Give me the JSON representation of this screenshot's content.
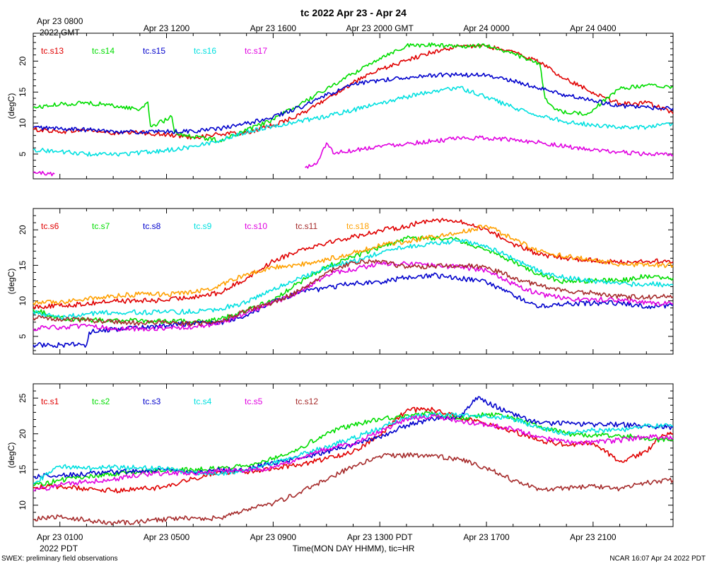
{
  "title": "tc 2022 Apr 23 - Apr 24",
  "top_axis": {
    "timezone_label": "2022 GMT",
    "ticks": [
      {
        "hour": 1,
        "label": "Apr 23 0800"
      },
      {
        "hour": 5,
        "label": "Apr 23 1200"
      },
      {
        "hour": 9,
        "label": "Apr 23 1600"
      },
      {
        "hour": 13,
        "label": "Apr 23 2000 GMT"
      },
      {
        "hour": 17,
        "label": "Apr 24 0000"
      },
      {
        "hour": 21,
        "label": "Apr 24 0400"
      }
    ]
  },
  "bottom_axis": {
    "timezone_label": "2022 PDT",
    "xlabel": "Time(MON DAY HHMM), tic=HR",
    "ticks": [
      {
        "hour": 1,
        "label": "Apr 23 0100"
      },
      {
        "hour": 5,
        "label": "Apr 23 0500"
      },
      {
        "hour": 9,
        "label": "Apr 23 0900"
      },
      {
        "hour": 13,
        "label": "Apr 23 1300 PDT"
      },
      {
        "hour": 17,
        "label": "Apr 23 1700"
      },
      {
        "hour": 21,
        "label": "Apr 23 2100"
      }
    ]
  },
  "footer": {
    "left": "SWEX: preliminary field observations",
    "right": "NCAR 16:07 Apr 24 2022 PDT"
  },
  "chart_data": [
    {
      "type": "line",
      "ylabel": "(degC)",
      "ylim": [
        1,
        24.5
      ],
      "xlim_hours_pdt": [
        0,
        24
      ],
      "yticks": [
        5,
        10,
        15,
        20
      ],
      "series": [
        {
          "name": "tc.s13",
          "color": "#e00000",
          "x": [
            0,
            1,
            2,
            3,
            4,
            5,
            6,
            7,
            8,
            9,
            10,
            11,
            12,
            13,
            14,
            15,
            16,
            17,
            18,
            19,
            20,
            21,
            21.5,
            22,
            22.5,
            23,
            23.5,
            24
          ],
          "values": [
            9,
            8.6,
            8.9,
            8.3,
            8.5,
            8.1,
            7.7,
            8.2,
            8.4,
            9.7,
            11.3,
            13.9,
            16.5,
            18.6,
            20.1,
            21.5,
            22.4,
            22.4,
            21.5,
            19.8,
            17,
            15,
            14,
            13.2,
            13,
            13.3,
            12.5,
            11.5
          ]
        },
        {
          "name": "tc.s14",
          "color": "#00dd00",
          "x": [
            0,
            1,
            2,
            3,
            4,
            4.3,
            4.4,
            5,
            5.2,
            5.3,
            6,
            6.5,
            7,
            8,
            9,
            10,
            11,
            12,
            13,
            14,
            15,
            16,
            17,
            18,
            19,
            19.2,
            19.5,
            20,
            20.8,
            21,
            22,
            23,
            24
          ],
          "values": [
            12.5,
            13,
            13.3,
            12.8,
            12.2,
            13.4,
            9.5,
            10.5,
            11,
            8.5,
            7.8,
            7.5,
            7.2,
            8.8,
            10.6,
            13,
            15.5,
            18,
            20.5,
            22.5,
            22.6,
            22.4,
            22.5,
            21.2,
            19.5,
            14,
            12.6,
            11.6,
            11.6,
            12.2,
            15.5,
            16.1,
            15.8
          ]
        },
        {
          "name": "tc.s15",
          "color": "#0000cc",
          "x": [
            0,
            1,
            2,
            3,
            4,
            5,
            6,
            7,
            8,
            9,
            10,
            11,
            12,
            13,
            14,
            15,
            16,
            17,
            18,
            19,
            20,
            21,
            22,
            23,
            24
          ],
          "values": [
            9.3,
            9.1,
            8.9,
            8.7,
            8.5,
            8.6,
            8.7,
            9.1,
            9.9,
            11,
            12.5,
            14.5,
            16.2,
            16.9,
            17.4,
            17.7,
            17.8,
            17.7,
            16.8,
            15.6,
            14.5,
            13.6,
            12.8,
            12.5,
            12.4
          ]
        },
        {
          "name": "tc.s16",
          "color": "#00e0e0",
          "x": [
            0,
            1,
            2,
            3,
            4,
            5,
            6,
            7,
            8,
            9,
            10,
            11,
            12,
            13,
            14,
            15,
            16,
            17,
            18,
            19,
            20,
            21,
            22,
            23,
            23.5,
            24
          ],
          "values": [
            5.7,
            5.4,
            5,
            4.9,
            5.2,
            5.6,
            6.2,
            7.2,
            8.6,
            9.5,
            10.3,
            11.1,
            12.1,
            13.2,
            14.2,
            15.2,
            15.7,
            14.2,
            12.5,
            11.2,
            10.2,
            9.7,
            9.3,
            9.3,
            9.6,
            9.9
          ]
        },
        {
          "name": "tc.s17",
          "color": "#e000e0",
          "x": [
            0,
            0.8,
            null,
            10.2,
            10.6,
            11,
            11.3,
            11.4,
            12,
            13,
            14,
            15,
            16,
            17,
            18,
            19,
            20,
            21,
            22,
            23,
            24
          ],
          "values": [
            2,
            1.8,
            null,
            2.8,
            3.3,
            6.8,
            5,
            5.3,
            5.6,
            6.3,
            6.7,
            7.1,
            7.5,
            7.6,
            7.3,
            6.9,
            6.2,
            5.6,
            5.3,
            5,
            4.8
          ]
        }
      ]
    },
    {
      "type": "line",
      "ylabel": "(degC)",
      "ylim": [
        2.5,
        23
      ],
      "xlim_hours_pdt": [
        0,
        24
      ],
      "yticks": [
        5,
        10,
        15,
        20
      ],
      "series": [
        {
          "name": "tc.s6",
          "color": "#e00000",
          "x": [
            0,
            1,
            2,
            3,
            4,
            5,
            6,
            7,
            8,
            9,
            10,
            11,
            12,
            13,
            14,
            15,
            16,
            17,
            18,
            19,
            20,
            21,
            22,
            23,
            24
          ],
          "values": [
            9.2,
            9.3,
            9.6,
            10,
            10,
            10.1,
            10.6,
            11.1,
            13.2,
            15.6,
            17.2,
            18.2,
            19,
            19.9,
            20.5,
            21.5,
            21.1,
            20.1,
            18,
            16.5,
            16,
            15.7,
            15.4,
            15.6,
            15.5
          ]
        },
        {
          "name": "tc.s7",
          "color": "#00dd00",
          "x": [
            0,
            1,
            2,
            3,
            4,
            5,
            6,
            7,
            8,
            9,
            10,
            11,
            12,
            13,
            14,
            15,
            16,
            17,
            18,
            19,
            20,
            21,
            22,
            23,
            24
          ],
          "values": [
            8.8,
            7.6,
            7.3,
            7.3,
            7.2,
            7.1,
            7.1,
            7.4,
            8.6,
            10.2,
            12.6,
            14.8,
            16.2,
            17.5,
            18.8,
            18.9,
            18.5,
            17.2,
            15.5,
            13.7,
            12.6,
            12.9,
            12.8,
            13.5,
            13.2
          ]
        },
        {
          "name": "tc.s8",
          "color": "#0000cc",
          "x": [
            0,
            1,
            2,
            2.1,
            3,
            4,
            5,
            6,
            7,
            8,
            9,
            10,
            11,
            12,
            13,
            14,
            15,
            16,
            17,
            18,
            19,
            20,
            21,
            22,
            23,
            24
          ],
          "values": [
            3.8,
            3.8,
            3.8,
            5.6,
            6,
            6.2,
            6.5,
            6.9,
            6.9,
            8,
            9.8,
            11.2,
            11.8,
            12.5,
            12.6,
            13.3,
            13.6,
            13.2,
            12.6,
            10.8,
            9.2,
            9.6,
            9.7,
            9.7,
            9.2,
            9.4
          ]
        },
        {
          "name": "tc.s9",
          "color": "#00e0e0",
          "x": [
            0,
            1,
            2,
            3,
            4,
            5,
            6,
            7,
            8,
            9,
            10,
            11,
            12,
            13,
            14,
            15,
            16,
            17,
            18,
            19,
            20,
            21,
            22,
            23,
            24
          ],
          "values": [
            8.5,
            7.6,
            8.2,
            8.4,
            8.4,
            8.4,
            8.5,
            8.9,
            9.8,
            11.6,
            13.2,
            14.7,
            15.6,
            16.7,
            17.6,
            18,
            18.5,
            17.8,
            15.9,
            14.1,
            13.3,
            12.8,
            12.3,
            12.4,
            12.2
          ]
        },
        {
          "name": "tc.s10",
          "color": "#e000e0",
          "x": [
            0,
            1,
            2,
            3,
            4,
            5,
            6,
            7,
            8,
            9,
            10,
            11,
            12,
            13,
            14,
            15,
            16,
            17,
            18,
            19,
            20,
            21,
            22,
            23,
            24
          ],
          "values": [
            6.1,
            6.3,
            6.4,
            6.1,
            6.1,
            6.2,
            6.3,
            6.8,
            8.3,
            9.8,
            11.2,
            13.7,
            14.4,
            15.3,
            15.2,
            15,
            14.8,
            14.3,
            12.4,
            10.9,
            10.3,
            10.2,
            10.1,
            9.7,
            9.6
          ]
        },
        {
          "name": "tc.s11",
          "color": "#a52a2a",
          "x": [
            0,
            1,
            2,
            3,
            4,
            5,
            6,
            7,
            8,
            9,
            10,
            11,
            12,
            13,
            14,
            15,
            16,
            17,
            18,
            19,
            20,
            21,
            22,
            23,
            24
          ],
          "values": [
            7.6,
            7.5,
            7.3,
            7,
            6.9,
            6.9,
            6.8,
            7.1,
            8.7,
            9.8,
            11.4,
            14,
            15.4,
            15.5,
            14.8,
            14.8,
            15.1,
            14.7,
            13.3,
            12.1,
            11.4,
            11.1,
            10.6,
            10.5,
            10.6
          ]
        },
        {
          "name": "tc.s18",
          "color": "#ffa000",
          "x": [
            0,
            1,
            2,
            3,
            4,
            5,
            6,
            7,
            8,
            9,
            10,
            11,
            12,
            13,
            14,
            15,
            16,
            17,
            18,
            19,
            20,
            21,
            22,
            23,
            24
          ],
          "values": [
            9.7,
            9.8,
            10.3,
            10.7,
            10.9,
            10.9,
            11.2,
            12.1,
            13.8,
            14.7,
            15.1,
            15.8,
            16.8,
            17.8,
            18.4,
            19,
            19.6,
            20.6,
            18.7,
            16.9,
            16.3,
            15.7,
            15.2,
            15.1,
            15
          ]
        }
      ]
    },
    {
      "type": "line",
      "ylabel": "(degC)",
      "ylim": [
        7,
        27
      ],
      "xlim_hours_pdt": [
        0,
        24
      ],
      "yticks": [
        10,
        15,
        20,
        25
      ],
      "series": [
        {
          "name": "tc.s1",
          "color": "#e00000",
          "x": [
            0,
            1,
            2,
            3,
            4,
            5,
            6,
            7,
            8,
            9,
            10,
            11,
            12,
            13,
            14,
            15,
            16,
            17,
            18,
            19,
            20,
            21,
            22,
            23,
            23.5,
            24
          ],
          "values": [
            12.5,
            12.6,
            12.3,
            12,
            12.3,
            12.5,
            13.7,
            14.7,
            14.6,
            15.2,
            15.7,
            16.5,
            17.5,
            19.8,
            23.3,
            23.4,
            22.3,
            21.3,
            20.4,
            19,
            18.5,
            18.7,
            16.1,
            17.5,
            19.5,
            20
          ]
        },
        {
          "name": "tc.s2",
          "color": "#00dd00",
          "x": [
            0,
            1,
            2,
            3,
            4,
            5,
            6,
            7,
            8,
            9,
            10,
            11,
            12,
            13,
            14,
            15,
            16,
            17,
            18,
            19,
            20,
            21,
            22,
            23,
            24
          ],
          "values": [
            12.8,
            13.5,
            14,
            14.3,
            14.7,
            15,
            14.9,
            15.2,
            15.6,
            16.6,
            18,
            20.1,
            21.3,
            22.1,
            22.6,
            22.8,
            22.1,
            22.8,
            22.2,
            21,
            20,
            19.8,
            19.8,
            19.3,
            19
          ]
        },
        {
          "name": "tc.s3",
          "color": "#0000cc",
          "x": [
            0,
            1,
            2,
            3,
            4,
            5,
            6,
            7,
            8,
            9,
            10,
            11,
            12,
            13,
            14,
            15,
            16,
            16.7,
            17,
            18,
            19,
            20,
            21,
            22,
            23,
            24
          ],
          "values": [
            14,
            14.2,
            14.4,
            14.6,
            14.8,
            14.9,
            14.6,
            14.9,
            15,
            16,
            16.6,
            17.5,
            18.5,
            19.5,
            21.2,
            22.1,
            22.3,
            25.2,
            24.4,
            22.8,
            21.4,
            21.5,
            21.3,
            21.3,
            21.1,
            20.9
          ]
        },
        {
          "name": "tc.s4",
          "color": "#00e0e0",
          "x": [
            0,
            1,
            2,
            3,
            4,
            5,
            6,
            7,
            8,
            9,
            10,
            11,
            12,
            13,
            14,
            15,
            16,
            17,
            18,
            19,
            20,
            21,
            22,
            23,
            24
          ],
          "values": [
            13,
            15.5,
            15.1,
            15.3,
            15.3,
            15.1,
            14.5,
            14.4,
            14.9,
            15.9,
            17,
            18.2,
            19.4,
            20.8,
            22.3,
            22.6,
            22.7,
            22.5,
            22.1,
            20.8,
            20,
            20.5,
            20.5,
            21.1,
            21.1
          ]
        },
        {
          "name": "tc.s5",
          "color": "#e000e0",
          "x": [
            0,
            1,
            2,
            3,
            4,
            5,
            6,
            7,
            8,
            9,
            10,
            11,
            12,
            13,
            14,
            15,
            16,
            17,
            18,
            19,
            20,
            21,
            22,
            23,
            24
          ],
          "values": [
            12,
            12.8,
            13.3,
            13.6,
            14.3,
            14.5,
            14.5,
            14.8,
            14.9,
            15.2,
            16.5,
            17.9,
            18.6,
            20.3,
            22.1,
            22.5,
            21.8,
            21.3,
            20.6,
            19.5,
            18.8,
            18.8,
            19.1,
            19.6,
            19.4
          ]
        },
        {
          "name": "tc.s12",
          "color": "#a52a2a",
          "x": [
            0,
            1,
            2,
            3,
            4,
            5,
            6,
            7,
            8,
            9,
            10,
            11,
            12,
            13,
            14,
            15,
            16,
            17,
            18,
            19,
            20,
            21,
            22,
            23,
            24
          ],
          "values": [
            8,
            8.4,
            7.9,
            7.5,
            7.7,
            8,
            8.2,
            8.2,
            9.4,
            10.2,
            11.8,
            13.5,
            15.5,
            16.9,
            17,
            16.9,
            16.4,
            15.2,
            13.5,
            12.2,
            12.4,
            12.7,
            12.3,
            13.1,
            13.5
          ]
        }
      ]
    }
  ]
}
